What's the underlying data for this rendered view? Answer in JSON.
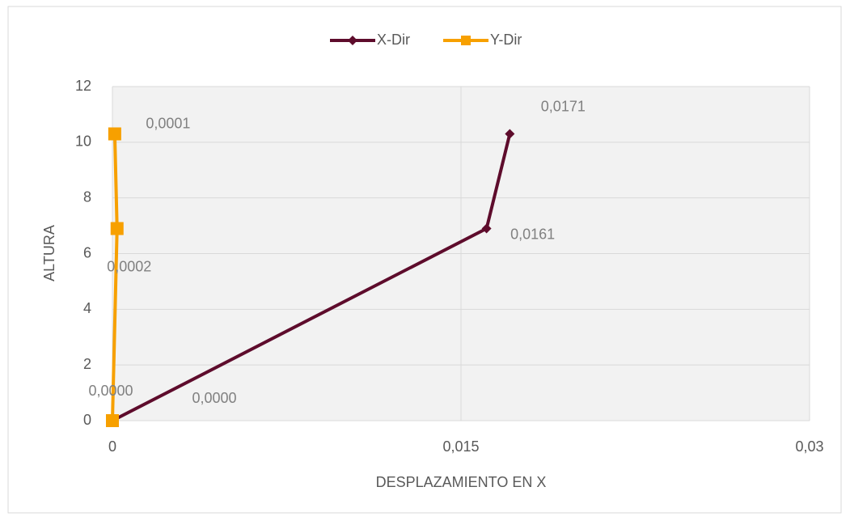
{
  "chart_data": {
    "type": "scatter-line",
    "xlabel": "DESPLAZAMIENTO EN X",
    "ylabel": "ALTURA",
    "series": [
      {
        "name": "X-Dir",
        "color": "#5e0c2c",
        "marker": "diamond",
        "x": [
          0,
          0.0161,
          0.0171
        ],
        "values": [
          0,
          6.9,
          10.3
        ],
        "x_labels": [
          "0,0000",
          "0,0161",
          "0,0171"
        ]
      },
      {
        "name": "Y-Dir",
        "color": "#f7a000",
        "marker": "square",
        "x": [
          0,
          0.0002,
          0.0001
        ],
        "values": [
          0,
          6.9,
          10.3
        ],
        "x_labels": [
          "0,0000",
          "0,0002",
          "0,0001"
        ]
      }
    ],
    "xlim": [
      0,
      0.03
    ],
    "xticks": [
      0,
      {
        "value": 0.015,
        "label": "0,015"
      },
      {
        "value": 0.03,
        "label": "0,03"
      }
    ],
    "ylim": [
      0,
      12
    ],
    "yticks": [
      0,
      2,
      4,
      6,
      8,
      10,
      12
    ],
    "grid": true,
    "legend": "top"
  }
}
